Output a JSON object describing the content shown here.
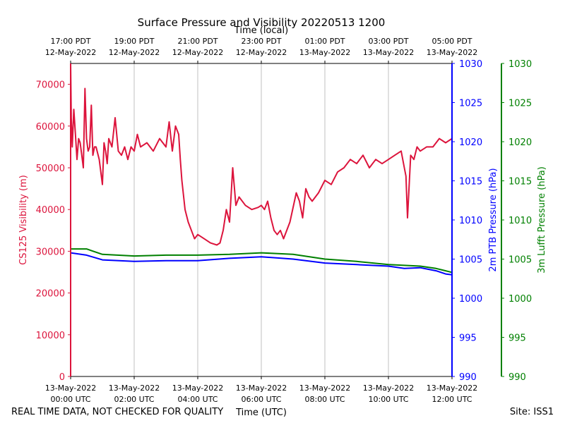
{
  "chart_data": {
    "type": "line",
    "title": "Surface Pressure and Visibility 20220513 1200",
    "top_xlabel": "Time (local)",
    "xlabel": "Time (UTC)",
    "footer_left": "REAL TIME DATA, NOT CHECKED FOR QUALITY",
    "footer_right": "Site: ISS1",
    "grid": "vertical",
    "x_ticks": [
      {
        "t": 0,
        "bottom": [
          "13-May-2022",
          "00:00 UTC"
        ],
        "top": [
          "17:00 PDT",
          "12-May-2022"
        ]
      },
      {
        "t": 2,
        "bottom": [
          "13-May-2022",
          "02:00 UTC"
        ],
        "top": [
          "19:00 PDT",
          "12-May-2022"
        ]
      },
      {
        "t": 4,
        "bottom": [
          "13-May-2022",
          "04:00 UTC"
        ],
        "top": [
          "21:00 PDT",
          "12-May-2022"
        ]
      },
      {
        "t": 6,
        "bottom": [
          "13-May-2022",
          "06:00 UTC"
        ],
        "top": [
          "23:00 PDT",
          "12-May-2022"
        ]
      },
      {
        "t": 8,
        "bottom": [
          "13-May-2022",
          "08:00 UTC"
        ],
        "top": [
          "01:00 PDT",
          "13-May-2022"
        ]
      },
      {
        "t": 10,
        "bottom": [
          "13-May-2022",
          "10:00 UTC"
        ],
        "top": [
          "03:00 PDT",
          "13-May-2022"
        ]
      },
      {
        "t": 12,
        "bottom": [
          "13-May-2022",
          "12:00 UTC"
        ],
        "top": [
          "05:00 PDT",
          "13-May-2022"
        ]
      }
    ],
    "xlim": [
      0,
      12
    ],
    "axes": {
      "visibility": {
        "label": "CS125 Visibility (m)",
        "ylim": [
          0,
          75000
        ],
        "ticks": [
          0,
          10000,
          20000,
          30000,
          40000,
          50000,
          60000,
          70000
        ],
        "color": "#dc143c"
      },
      "ptb": {
        "label": "2m PTB Pressure (hPa)",
        "ylim": [
          990,
          1030
        ],
        "ticks": [
          990,
          995,
          1000,
          1005,
          1010,
          1015,
          1020,
          1025,
          1030
        ],
        "color": "#0000ff"
      },
      "lufft": {
        "label": "3m Lufft Pressure (hPa)",
        "ylim": [
          990,
          1030
        ],
        "ticks": [
          990,
          995,
          1000,
          1005,
          1010,
          1015,
          1020,
          1025,
          1030
        ],
        "color": "#008000"
      }
    },
    "series": [
      {
        "axis": "visibility",
        "color": "#dc143c",
        "x": [
          0,
          0.02,
          0.05,
          0.1,
          0.15,
          0.2,
          0.25,
          0.3,
          0.35,
          0.4,
          0.45,
          0.5,
          0.55,
          0.6,
          0.65,
          0.7,
          0.75,
          0.8,
          0.9,
          1.0,
          1.05,
          1.1,
          1.15,
          1.2,
          1.3,
          1.4,
          1.5,
          1.6,
          1.7,
          1.8,
          1.9,
          2.0,
          2.1,
          2.2,
          2.4,
          2.6,
          2.8,
          3.0,
          3.1,
          3.2,
          3.3,
          3.4,
          3.45,
          3.5,
          3.6,
          3.7,
          3.8,
          3.9,
          4.0,
          4.2,
          4.4,
          4.6,
          4.7,
          4.8,
          4.9,
          5.0,
          5.1,
          5.2,
          5.3,
          5.5,
          5.7,
          5.9,
          6.0,
          6.1,
          6.2,
          6.3,
          6.4,
          6.5,
          6.6,
          6.7,
          6.9,
          7.1,
          7.2,
          7.3,
          7.4,
          7.5,
          7.6,
          7.8,
          8.0,
          8.2,
          8.4,
          8.6,
          8.8,
          9.0,
          9.2,
          9.4,
          9.6,
          9.8,
          10.0,
          10.2,
          10.4,
          10.5,
          10.55,
          10.6,
          10.7,
          10.8,
          10.9,
          11.0,
          11.2,
          11.4,
          11.6,
          11.8,
          12.0
        ],
        "y": [
          75000,
          62000,
          55000,
          64000,
          58000,
          52000,
          57000,
          56000,
          53000,
          50000,
          69000,
          57000,
          54000,
          55000,
          65000,
          53000,
          55000,
          55000,
          52000,
          46000,
          56000,
          54000,
          51000,
          57000,
          55000,
          62000,
          54000,
          53000,
          55000,
          52000,
          55000,
          54000,
          58000,
          55000,
          56000,
          54000,
          57000,
          55000,
          61000,
          54000,
          60000,
          58000,
          52000,
          47000,
          40000,
          37000,
          35000,
          33000,
          34000,
          33000,
          32000,
          31500,
          32000,
          35000,
          40000,
          37000,
          50000,
          41000,
          43000,
          41000,
          40000,
          40500,
          41000,
          40000,
          42000,
          38000,
          35000,
          34000,
          35000,
          33000,
          37000,
          44000,
          42000,
          38000,
          45000,
          43000,
          42000,
          44000,
          47000,
          46000,
          49000,
          50000,
          52000,
          51000,
          53000,
          50000,
          52000,
          51000,
          52000,
          53000,
          54000,
          50000,
          48000,
          38000,
          53000,
          52000,
          55000,
          54000,
          55000,
          55000,
          57000,
          56000,
          57000
        ]
      },
      {
        "axis": "ptb",
        "color": "#0000ff",
        "x": [
          0,
          0.5,
          1,
          2,
          3,
          4,
          5,
          6,
          7,
          8,
          9,
          10,
          10.5,
          11,
          11.5,
          11.8,
          12
        ],
        "y": [
          1005.8,
          1005.5,
          1004.9,
          1004.7,
          1004.8,
          1004.8,
          1005.1,
          1005.3,
          1005.0,
          1004.5,
          1004.3,
          1004.1,
          1003.8,
          1003.9,
          1003.5,
          1003.1,
          1003.0
        ]
      },
      {
        "axis": "lufft",
        "color": "#008000",
        "x": [
          0,
          0.5,
          1,
          2,
          3,
          4,
          5,
          6,
          7,
          8,
          9,
          10,
          10.5,
          11,
          11.5,
          11.8,
          12
        ],
        "y": [
          1006.3,
          1006.3,
          1005.6,
          1005.4,
          1005.5,
          1005.5,
          1005.6,
          1005.8,
          1005.6,
          1005.0,
          1004.7,
          1004.3,
          1004.2,
          1004.1,
          1003.8,
          1003.5,
          1003.3
        ]
      }
    ]
  }
}
